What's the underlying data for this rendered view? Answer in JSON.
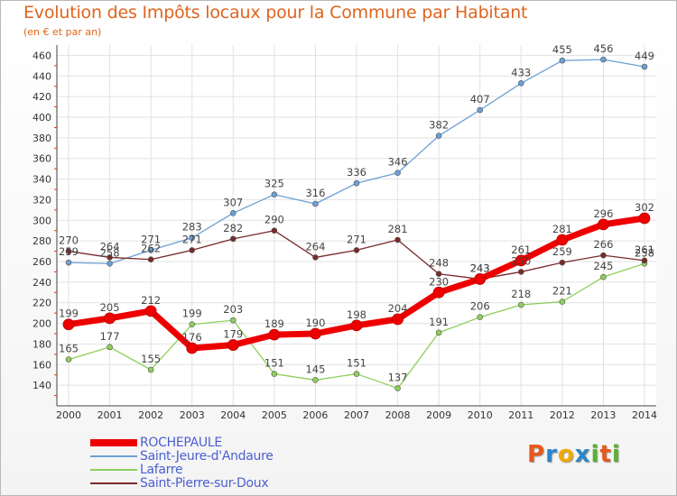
{
  "header": {
    "title": "Evolution des Impôts locaux pour la Commune par Habitant",
    "subtitle": "(en € et par an)"
  },
  "logo": {
    "text": "Proxiti",
    "colors": [
      "#e8581c",
      "#2b86c9",
      "#f2a900",
      "#2b86c9",
      "#5cb030",
      "#e8581c",
      "#5cb030"
    ]
  },
  "chart_data": {
    "type": "line",
    "x": [
      2000,
      2001,
      2002,
      2003,
      2004,
      2005,
      2006,
      2007,
      2008,
      2009,
      2010,
      2011,
      2012,
      2013,
      2014
    ],
    "ylim": [
      120,
      470
    ],
    "yticks": [
      140,
      160,
      180,
      200,
      220,
      240,
      260,
      280,
      300,
      320,
      340,
      360,
      380,
      400,
      420,
      440,
      460
    ],
    "grid": true,
    "legend_position": "bottom-left",
    "series": [
      {
        "name": "ROCHEPAULE",
        "color": "#ee0000",
        "values": [
          199,
          205,
          212,
          176,
          179,
          189,
          190,
          198,
          204,
          230,
          243,
          261,
          281,
          296,
          302
        ]
      },
      {
        "name": "Saint-Jeure-d'Andaure",
        "color": "#6aa0d4",
        "values": [
          259,
          258,
          271,
          283,
          307,
          325,
          316,
          336,
          346,
          382,
          407,
          433,
          455,
          456,
          449
        ]
      },
      {
        "name": "Lafarre",
        "color": "#8ecf5b",
        "values": [
          165,
          177,
          155,
          199,
          203,
          151,
          145,
          151,
          137,
          191,
          206,
          218,
          221,
          245,
          258
        ]
      },
      {
        "name": "Saint-Pierre-sur-Doux",
        "color": "#7a2a2a",
        "values": [
          270,
          264,
          262,
          271,
          282,
          290,
          264,
          271,
          281,
          248,
          243,
          250,
          259,
          266,
          261
        ]
      }
    ]
  }
}
